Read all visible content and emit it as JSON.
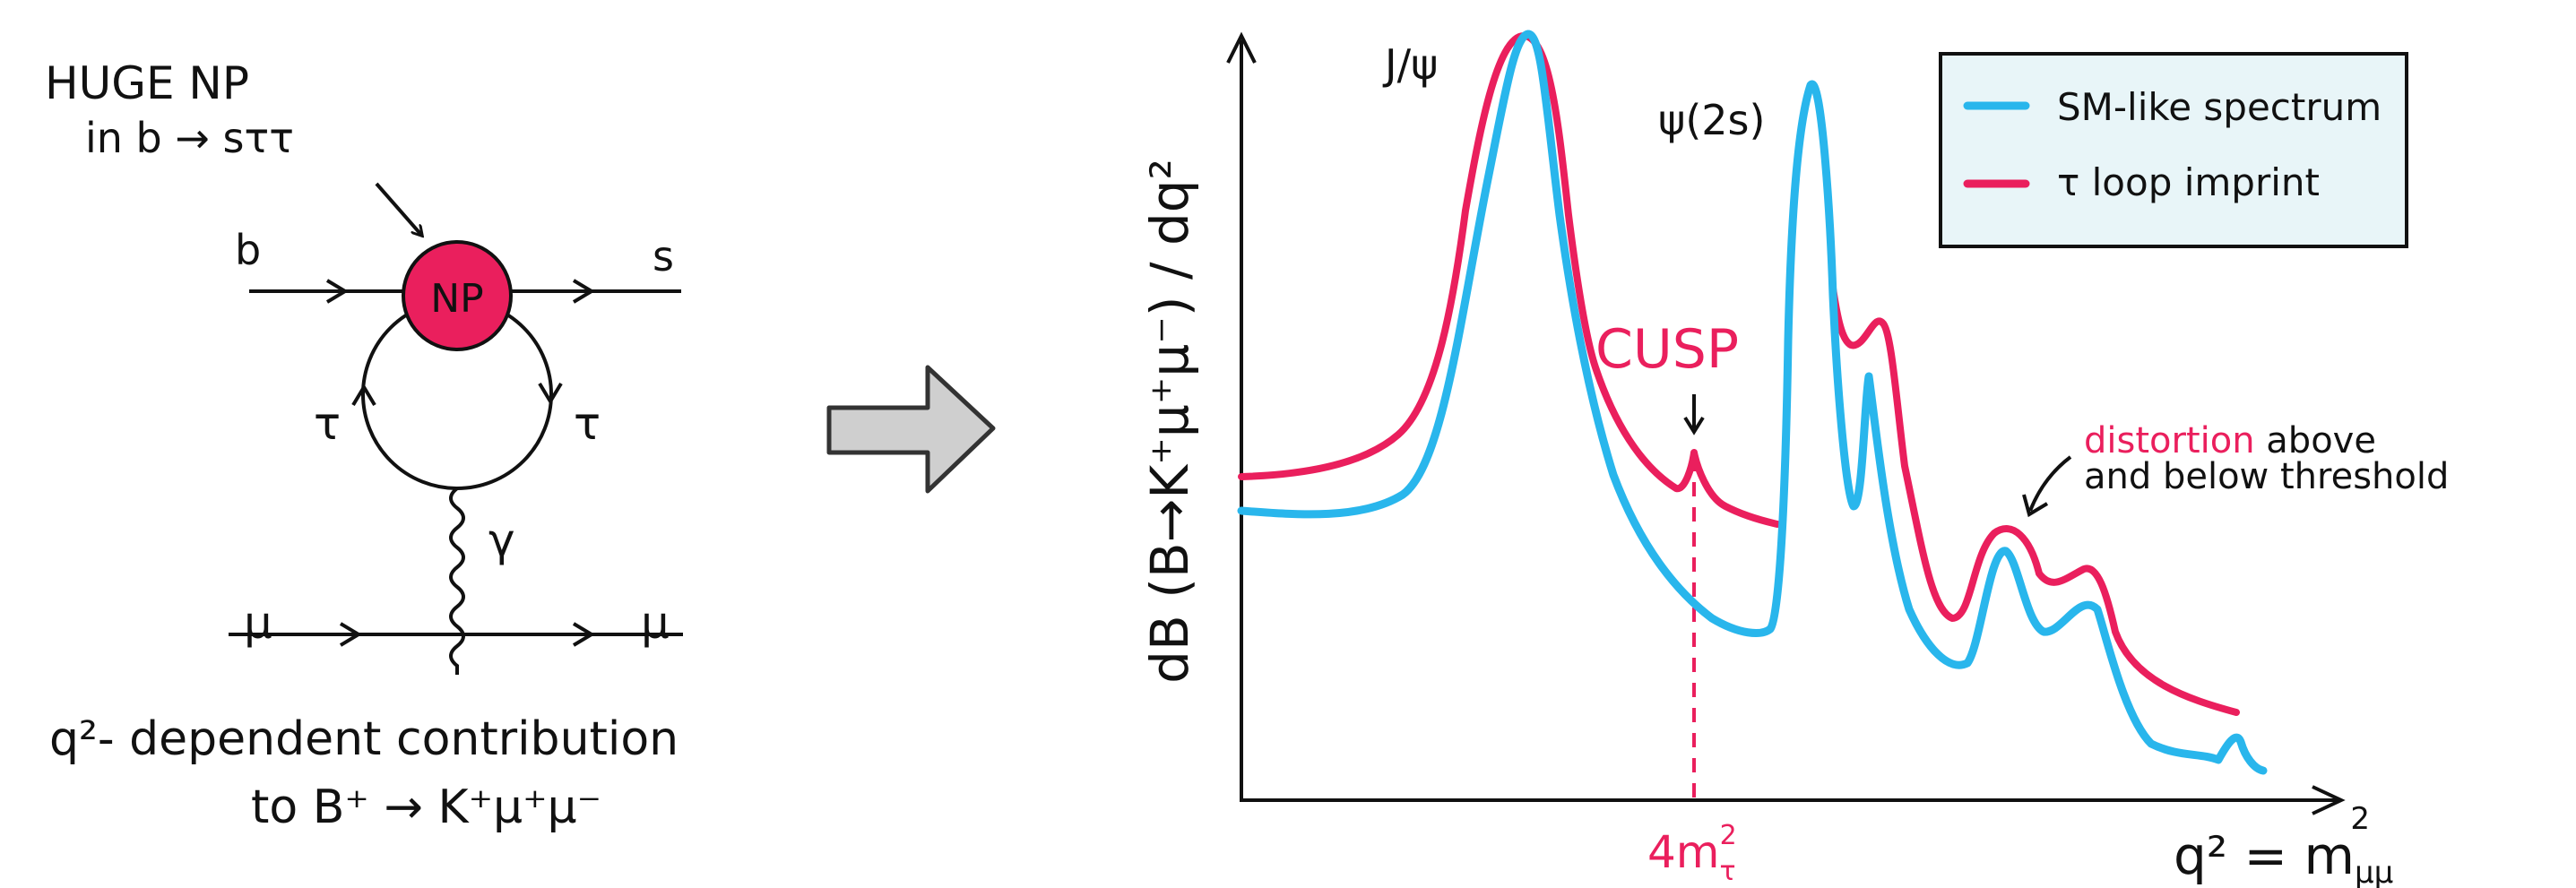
{
  "feynman": {
    "title_line1": "HUGE NP",
    "title_line2": "in  b → sττ",
    "label_b": "b",
    "label_s": "s",
    "label_np": "NP",
    "label_tau_left": "τ",
    "label_tau_right": "τ",
    "label_gamma": "γ",
    "label_mu_left": "μ",
    "label_mu_right": "μ",
    "caption_line1": "q²- dependent contribution",
    "caption_line2": "to  B⁺ → K⁺μ⁺μ⁻",
    "np_color": "#ea1f5d"
  },
  "arrow": {
    "icon": "right-arrow-icon",
    "fill": "#cfcfcf"
  },
  "plot": {
    "ylabel": "dB (B→K⁺μ⁺μ⁻) / dq²",
    "xlabel": "q² = m",
    "xlabel_sub": "μμ",
    "xlabel_sup": "2",
    "threshold_label": "4m",
    "threshold_sub": "τ",
    "threshold_sup": "2",
    "peak_jpsi": "J/ψ",
    "peak_psi2s": "ψ(2s)",
    "cusp_label": "CUSP",
    "distortion_word": "distortion",
    "distortion_rest": " above",
    "distortion_line2": "and below threshold",
    "legend": [
      {
        "label": "SM-like spectrum",
        "color": "#29b6ec"
      },
      {
        "label": "τ loop imprint",
        "color": "#ea1f5d"
      }
    ],
    "accent_color": "#ea1f5d",
    "sm_color": "#29b6ec"
  }
}
